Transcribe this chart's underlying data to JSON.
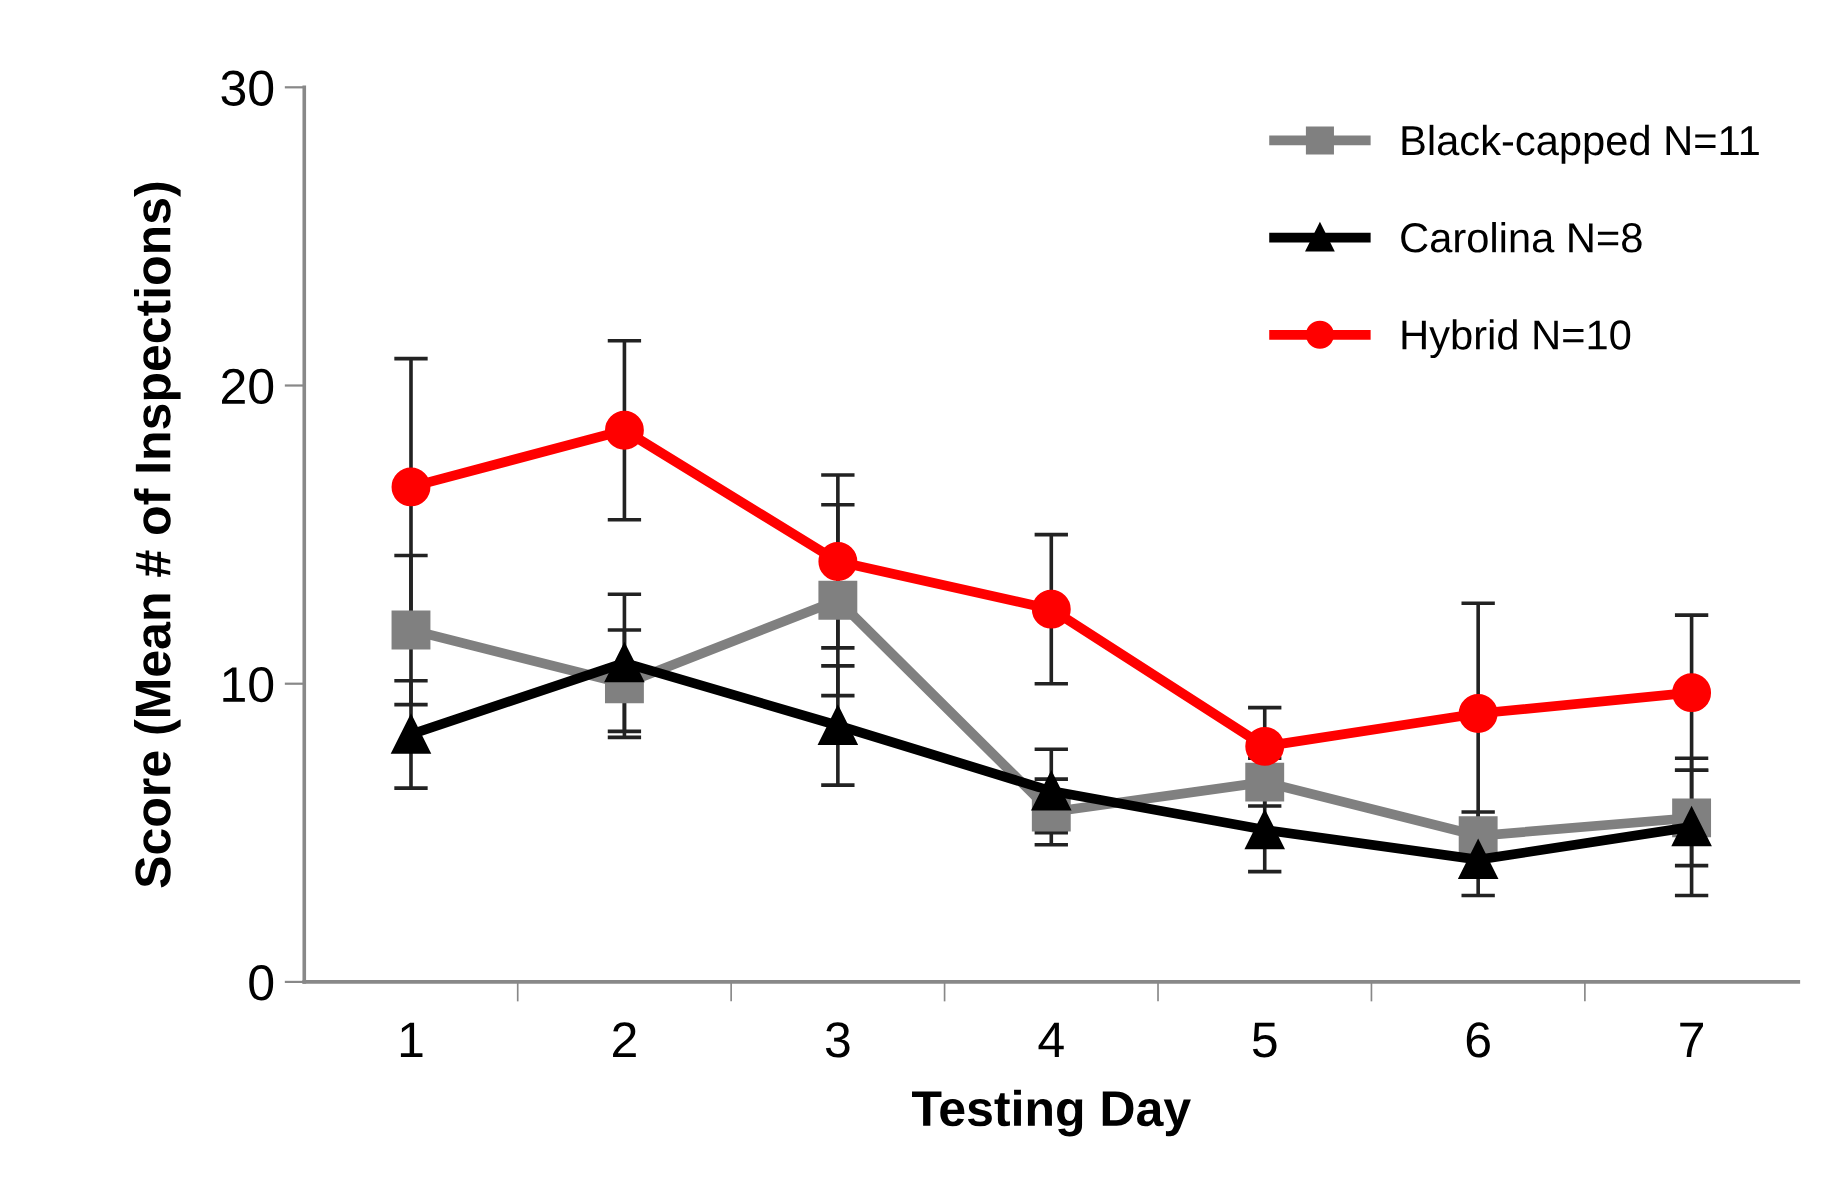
{
  "chart_data": {
    "type": "line",
    "xlabel": "Testing Day",
    "ylabel": "Score (Mean # of Inspections)",
    "categories": [
      "1",
      "2",
      "3",
      "4",
      "5",
      "6",
      "7"
    ],
    "ylim": [
      0,
      30
    ],
    "yticks": [
      0,
      10,
      20,
      30
    ],
    "grid": false,
    "legend": "top right",
    "line_style": "solid",
    "series": [
      {
        "name": "Black-capped N=11",
        "color": "#808080",
        "marker": "square",
        "values": [
          11.8,
          10.0,
          12.8,
          5.7,
          6.7,
          4.9,
          5.5
        ],
        "errors": [
          2.5,
          1.8,
          3.2,
          1.1,
          0.8,
          0.8,
          1.6
        ]
      },
      {
        "name": "Carolina N=8",
        "color": "#000000",
        "marker": "triangle",
        "values": [
          8.3,
          10.7,
          8.6,
          6.4,
          5.1,
          4.1,
          5.2
        ],
        "errors": [
          1.8,
          2.3,
          2.0,
          1.4,
          1.4,
          1.2,
          2.3
        ]
      },
      {
        "name": "Hybrid N=10",
        "color": "#ff0000",
        "marker": "circle",
        "values": [
          16.6,
          18.5,
          14.1,
          12.5,
          7.9,
          9.0,
          9.7
        ],
        "errors": [
          4.3,
          3.0,
          2.9,
          2.5,
          1.3,
          3.7,
          2.6
        ]
      }
    ]
  }
}
